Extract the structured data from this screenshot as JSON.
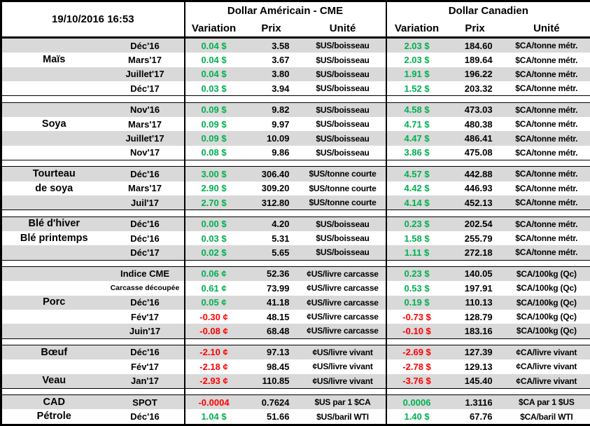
{
  "header": {
    "timestamp": "19/10/2016 16:53",
    "group_us": "Dollar Américain - CME",
    "group_ca": "Dollar Canadien",
    "col_variation": "Variation",
    "col_prix": "Prix",
    "col_unite": "Unité"
  },
  "colors": {
    "positive": "#00B050",
    "negative": "#FF0000",
    "stripe": "#D9D9D9",
    "border": "#000000"
  },
  "groups": [
    {
      "rows": [
        {
          "label": "",
          "contract": "Déc'16",
          "small": false,
          "us_var": "0.04 $",
          "us_dir": "pos",
          "us_prix": "3.58",
          "us_unit": "$US/boisseau",
          "ca_var": "2.03 $",
          "ca_dir": "pos",
          "ca_prix": "184.60",
          "ca_unit": "$CA/tonne métr."
        },
        {
          "label": "Maïs",
          "contract": "Mars'17",
          "small": false,
          "us_var": "0.04 $",
          "us_dir": "pos",
          "us_prix": "3.67",
          "us_unit": "$US/boisseau",
          "ca_var": "2.03 $",
          "ca_dir": "pos",
          "ca_prix": "189.64",
          "ca_unit": "$CA/tonne métr."
        },
        {
          "label": "",
          "contract": "Juillet'17",
          "small": false,
          "us_var": "0.04 $",
          "us_dir": "pos",
          "us_prix": "3.80",
          "us_unit": "$US/boisseau",
          "ca_var": "1.91 $",
          "ca_dir": "pos",
          "ca_prix": "196.22",
          "ca_unit": "$CA/tonne métr."
        },
        {
          "label": "",
          "contract": "Déc'17",
          "small": false,
          "us_var": "0.03 $",
          "us_dir": "pos",
          "us_prix": "3.94",
          "us_unit": "$US/boisseau",
          "ca_var": "1.52 $",
          "ca_dir": "pos",
          "ca_prix": "203.32",
          "ca_unit": "$CA/tonne métr."
        }
      ]
    },
    {
      "rows": [
        {
          "label": "",
          "contract": "Nov'16",
          "small": false,
          "us_var": "0.09 $",
          "us_dir": "pos",
          "us_prix": "9.82",
          "us_unit": "$US/boisseau",
          "ca_var": "4.58 $",
          "ca_dir": "pos",
          "ca_prix": "473.03",
          "ca_unit": "$CA/tonne métr."
        },
        {
          "label": "Soya",
          "contract": "Mars'17",
          "small": false,
          "us_var": "0.09 $",
          "us_dir": "pos",
          "us_prix": "9.97",
          "us_unit": "$US/boisseau",
          "ca_var": "4.71 $",
          "ca_dir": "pos",
          "ca_prix": "480.38",
          "ca_unit": "$CA/tonne métr."
        },
        {
          "label": "",
          "contract": "Juillet'17",
          "small": false,
          "us_var": "0.09 $",
          "us_dir": "pos",
          "us_prix": "10.09",
          "us_unit": "$US/boisseau",
          "ca_var": "4.47 $",
          "ca_dir": "pos",
          "ca_prix": "486.41",
          "ca_unit": "$CA/tonne métr."
        },
        {
          "label": "",
          "contract": "Nov'17",
          "small": false,
          "us_var": "0.08 $",
          "us_dir": "pos",
          "us_prix": "9.86",
          "us_unit": "$US/boisseau",
          "ca_var": "3.86 $",
          "ca_dir": "pos",
          "ca_prix": "475.08",
          "ca_unit": "$CA/tonne métr."
        }
      ]
    },
    {
      "rows": [
        {
          "label": "Tourteau",
          "contract": "Déc'16",
          "small": false,
          "us_var": "3.00 $",
          "us_dir": "pos",
          "us_prix": "306.40",
          "us_unit": "$US/tonne courte",
          "ca_var": "4.57 $",
          "ca_dir": "pos",
          "ca_prix": "442.88",
          "ca_unit": "$CA/tonne métr."
        },
        {
          "label": "de soya",
          "contract": "Mars'17",
          "small": false,
          "us_var": "2.90 $",
          "us_dir": "pos",
          "us_prix": "309.20",
          "us_unit": "$US/tonne courte",
          "ca_var": "4.42 $",
          "ca_dir": "pos",
          "ca_prix": "446.93",
          "ca_unit": "$CA/tonne métr."
        },
        {
          "label": "",
          "contract": "Juil'17",
          "small": false,
          "us_var": "2.70 $",
          "us_dir": "pos",
          "us_prix": "312.80",
          "us_unit": "$US/tonne courte",
          "ca_var": "4.14 $",
          "ca_dir": "pos",
          "ca_prix": "452.13",
          "ca_unit": "$CA/tonne métr."
        }
      ]
    },
    {
      "rows": [
        {
          "label": "Blé d'hiver",
          "contract": "Déc'16",
          "small": false,
          "us_var": "0.00 $",
          "us_dir": "pos",
          "us_prix": "4.20",
          "us_unit": "$US/boisseau",
          "ca_var": "0.23 $",
          "ca_dir": "pos",
          "ca_prix": "202.54",
          "ca_unit": "$CA/tonne métr."
        },
        {
          "label": "Blé printemps",
          "contract": "Déc'16",
          "small": false,
          "us_var": "0.03 $",
          "us_dir": "pos",
          "us_prix": "5.31",
          "us_unit": "$US/boisseau",
          "ca_var": "1.58 $",
          "ca_dir": "pos",
          "ca_prix": "255.79",
          "ca_unit": "$CA/tonne métr."
        },
        {
          "label": "",
          "contract": "Déc'17",
          "small": false,
          "us_var": "0.02 $",
          "us_dir": "pos",
          "us_prix": "5.65",
          "us_unit": "$US/boisseau",
          "ca_var": "1.11 $",
          "ca_dir": "pos",
          "ca_prix": "272.18",
          "ca_unit": "$CA/tonne métr."
        }
      ]
    },
    {
      "rows": [
        {
          "label": "",
          "contract": "Indice CME",
          "small": false,
          "us_var": "0.06 ¢",
          "us_dir": "pos",
          "us_prix": "52.36",
          "us_unit": "¢US/livre carcasse",
          "ca_var": "0.23 $",
          "ca_dir": "pos",
          "ca_prix": "140.05",
          "ca_unit": "$CA/100kg (Qc)"
        },
        {
          "label": "",
          "contract": "Carcasse découpée",
          "small": true,
          "us_var": "0.61 ¢",
          "us_dir": "pos",
          "us_prix": "73.99",
          "us_unit": "¢US/livre carcasse",
          "ca_var": "0.53 $",
          "ca_dir": "pos",
          "ca_prix": "197.91",
          "ca_unit": "$CA/100kg (Qc)"
        },
        {
          "label": "Porc",
          "contract": "Déc'16",
          "small": false,
          "us_var": "0.05 ¢",
          "us_dir": "pos",
          "us_prix": "41.18",
          "us_unit": "¢US/livre carcasse",
          "ca_var": "0.19 $",
          "ca_dir": "pos",
          "ca_prix": "110.13",
          "ca_unit": "$CA/100kg (Qc)"
        },
        {
          "label": "",
          "contract": "Fév'17",
          "small": false,
          "us_var": "-0.30 ¢",
          "us_dir": "neg",
          "us_prix": "48.15",
          "us_unit": "¢US/livre carcasse",
          "ca_var": "-0.73 $",
          "ca_dir": "neg",
          "ca_prix": "128.79",
          "ca_unit": "$CA/100kg (Qc)"
        },
        {
          "label": "",
          "contract": "Juin'17",
          "small": false,
          "us_var": "-0.08 ¢",
          "us_dir": "neg",
          "us_prix": "68.48",
          "us_unit": "¢US/livre carcasse",
          "ca_var": "-0.10 $",
          "ca_dir": "neg",
          "ca_prix": "183.16",
          "ca_unit": "$CA/100kg (Qc)"
        }
      ]
    },
    {
      "rows": [
        {
          "label": "Bœuf",
          "contract": "Déc'16",
          "small": false,
          "us_var": "-2.10 ¢",
          "us_dir": "neg",
          "us_prix": "97.13",
          "us_unit": "¢US/livre vivant",
          "ca_var": "-2.69 $",
          "ca_dir": "neg",
          "ca_prix": "127.39",
          "ca_unit": "¢CA/livre vivant"
        },
        {
          "label": "",
          "contract": "Fév'17",
          "small": false,
          "us_var": "-2.18 ¢",
          "us_dir": "neg",
          "us_prix": "98.45",
          "us_unit": "¢US/livre vivant",
          "ca_var": "-2.78 $",
          "ca_dir": "neg",
          "ca_prix": "129.13",
          "ca_unit": "¢CA/livre vivant"
        },
        {
          "label": "Veau",
          "contract": "Jan'17",
          "small": false,
          "us_var": "-2.93 ¢",
          "us_dir": "neg",
          "us_prix": "110.85",
          "us_unit": "¢US/livre vivant",
          "ca_var": "-3.76 $",
          "ca_dir": "neg",
          "ca_prix": "145.40",
          "ca_unit": "¢CA/livre vivant"
        }
      ]
    },
    {
      "rows": [
        {
          "label": "CAD",
          "contract": "SPOT",
          "small": false,
          "us_var": "-0.0004",
          "us_dir": "neg",
          "us_prix": "0.7624",
          "us_unit": "$US par 1 $CA",
          "ca_var": "0.0006",
          "ca_dir": "pos",
          "ca_prix": "1.3116",
          "ca_unit": "$CA par 1 $US"
        },
        {
          "label": "Pétrole",
          "contract": "Déc'16",
          "small": false,
          "us_var": "1.04 $",
          "us_dir": "pos",
          "us_prix": "51.66",
          "us_unit": "$US/baril WTI",
          "ca_var": "1.40 $",
          "ca_dir": "pos",
          "ca_prix": "67.76",
          "ca_unit": "$CA/baril WTI"
        }
      ]
    }
  ]
}
